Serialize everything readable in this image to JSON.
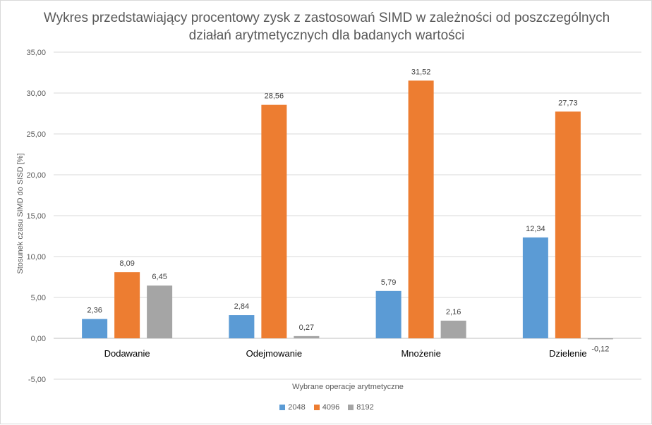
{
  "title_lines": [
    "Wykres przedstawiający procentowy zysk z zastosowań SIMD w zależności od poszczególnych",
    "działań arytmetycznych dla badanych wartości"
  ],
  "chart_data": {
    "type": "bar",
    "title": "Wykres przedstawiający procentowy zysk z zastosowań SIMD w zależności od poszczególnych działań arytmetycznych dla badanych wartości",
    "xlabel": "Wybrane operacje arytmetyczne",
    "ylabel": "Stosunek czasu SIMD do SISD [%]",
    "categories": [
      "Dodawanie",
      "Odejmowanie",
      "Mnożenie",
      "Dzielenie"
    ],
    "series": [
      {
        "name": "2048",
        "color": "#5b9bd5",
        "values": [
          2.36,
          2.84,
          5.79,
          12.34
        ],
        "labels": [
          "2,36",
          "2,84",
          "5,79",
          "12,34"
        ]
      },
      {
        "name": "4096",
        "color": "#ed7d31",
        "values": [
          8.09,
          28.56,
          31.52,
          27.73
        ],
        "labels": [
          "8,09",
          "28,56",
          "31,52",
          "27,73"
        ]
      },
      {
        "name": "8192",
        "color": "#a5a5a5",
        "values": [
          6.45,
          0.27,
          2.16,
          -0.12
        ],
        "labels": [
          "6,45",
          "0,27",
          "2,16",
          "-0,12"
        ]
      }
    ],
    "ylim": [
      -5,
      35
    ],
    "yticks": [
      -5,
      0,
      5,
      10,
      15,
      20,
      25,
      30,
      35
    ],
    "ytick_labels": [
      "-5,00",
      "0,00",
      "5,00",
      "10,00",
      "15,00",
      "20,00",
      "25,00",
      "30,00",
      "35,00"
    ],
    "grid": true,
    "legend_position": "bottom"
  }
}
